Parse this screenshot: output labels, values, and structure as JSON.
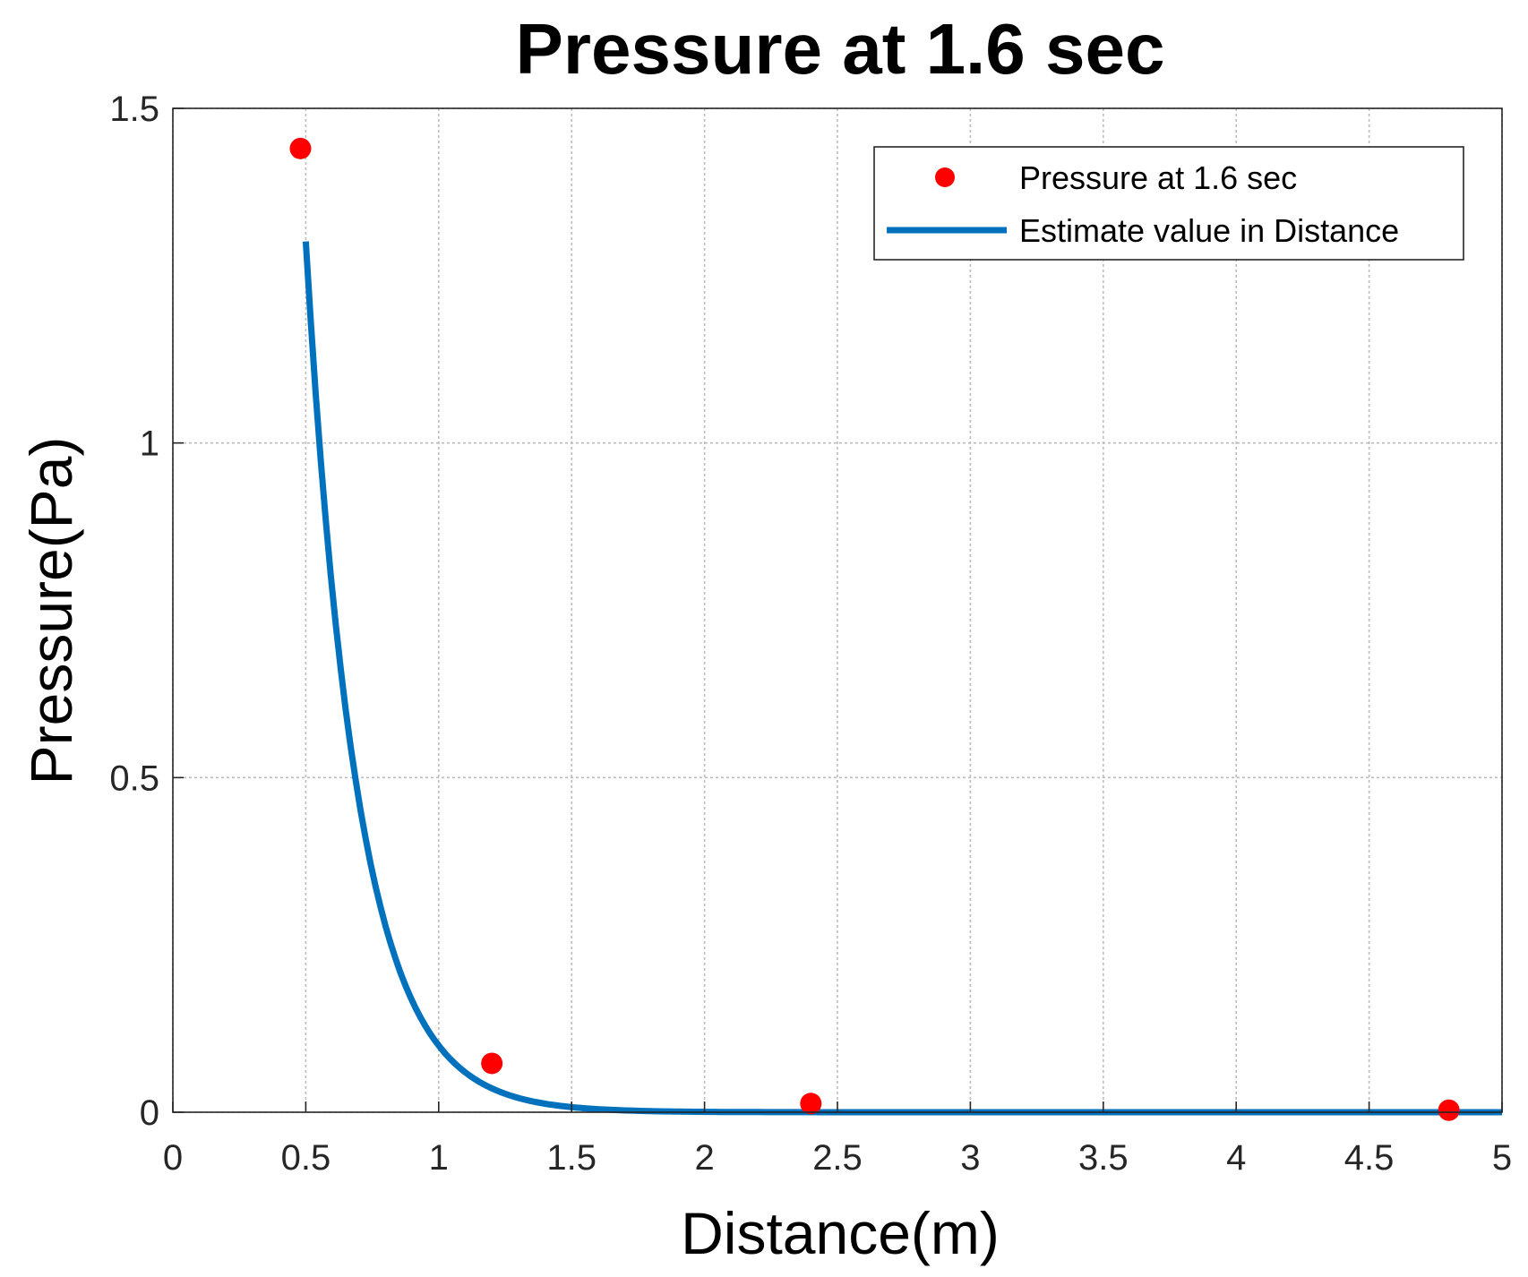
{
  "chart_data": {
    "type": "scatter",
    "title": "Pressure at 1.6 sec",
    "xlabel": "Distance(m)",
    "ylabel": "Pressure(Pa)",
    "xlim": [
      0,
      5
    ],
    "ylim": [
      0,
      1.5
    ],
    "grid": true,
    "legend_position": "top-right",
    "xticks": [
      {
        "value": 0,
        "label": "0"
      },
      {
        "value": 0.5,
        "label": "0.5"
      },
      {
        "value": 1,
        "label": "1"
      },
      {
        "value": 1.5,
        "label": "1.5"
      },
      {
        "value": 2,
        "label": "2"
      },
      {
        "value": 2.5,
        "label": "2.5"
      },
      {
        "value": 3,
        "label": "3"
      },
      {
        "value": 3.5,
        "label": "3.5"
      },
      {
        "value": 4,
        "label": "4"
      },
      {
        "value": 4.5,
        "label": "4.5"
      },
      {
        "value": 5,
        "label": "5"
      }
    ],
    "yticks": [
      {
        "value": 0,
        "label": "0"
      },
      {
        "value": 0.5,
        "label": "0.5"
      },
      {
        "value": 1,
        "label": "1"
      },
      {
        "value": 1.5,
        "label": "1.5"
      }
    ],
    "series": [
      {
        "name": "Pressure at 1.6 sec",
        "kind": "scatter",
        "color": "#ff0000",
        "x": [
          0.48,
          1.2,
          2.4,
          4.8
        ],
        "y": [
          1.44,
          0.073,
          0.013,
          0.003
        ]
      },
      {
        "name": "Estimate value in Distance",
        "kind": "line",
        "color": "#0072bd",
        "model": {
          "form": "a*exp(-b*x)",
          "a": 17.0,
          "b": 5.14
        },
        "x_range": [
          0.5,
          5.0
        ]
      }
    ]
  }
}
